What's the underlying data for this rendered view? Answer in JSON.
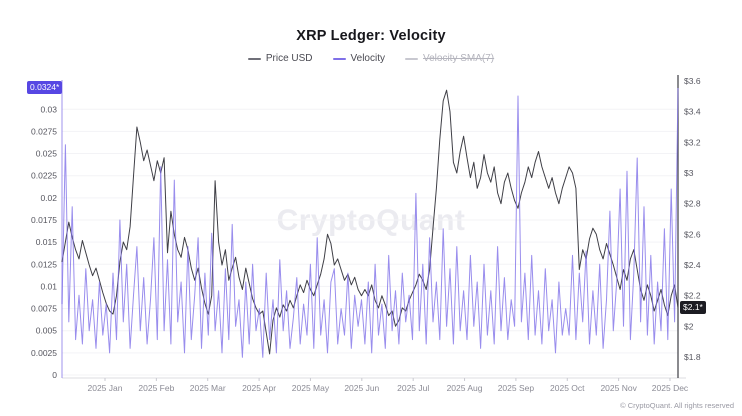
{
  "header": {
    "title": "XRP Ledger: Velocity"
  },
  "legend": {
    "items": [
      {
        "label": "Price USD",
        "color": "#6f6f78",
        "active": true
      },
      {
        "label": "Velocity",
        "color": "#7f70e8",
        "active": true
      },
      {
        "label": "Velocity SMA(7)",
        "color": "#c8c8d0",
        "active": false
      }
    ]
  },
  "watermark": "CryptoQuant",
  "footer": {
    "copyright": "© CryptoQuant. All rights reserved"
  },
  "chart_data": {
    "type": "line",
    "title": "XRP Ledger: Velocity",
    "grid": true,
    "legend_position": "top",
    "x_ticks": [
      "2025 Jan",
      "2025 Feb",
      "2025 Mar",
      "2025 Apr",
      "2025 May",
      "2025 Jun",
      "2025 Jul",
      "2025 Aug",
      "2025 Sep",
      "2025 Oct",
      "2025 Nov",
      "2025 Dec"
    ],
    "left_axis": {
      "label": "Velocity",
      "tick_labels": [
        "0",
        "0.0025",
        "0.005",
        "0.0075",
        "0.01",
        "0.0125",
        "0.015",
        "0.0175",
        "0.02",
        "0.0225",
        "0.025",
        "0.0275",
        "0.03"
      ],
      "range": [
        0,
        0.0324
      ],
      "current_value": 0.0324,
      "current_badge": "0.0324*",
      "badge_color": "#5747e3",
      "axis_color": "#7f70e8"
    },
    "right_axis": {
      "label": "Price USD",
      "tick_labels": [
        "$1.8",
        "$2",
        "$2.2",
        "$2.4",
        "$2.6",
        "$2.8",
        "$3",
        "$3.2",
        "$3.4",
        "$3.6"
      ],
      "range": [
        1.8,
        3.6
      ],
      "current_value": 2.12,
      "current_badge": "$2.1*",
      "badge_color": "#1c1c22",
      "axis_color": "#3d3d44"
    },
    "series": [
      {
        "name": "Price USD",
        "axis": "right",
        "color": "#3f3f46",
        "hidden": false,
        "values": [
          2.42,
          2.55,
          2.68,
          2.58,
          2.5,
          2.44,
          2.56,
          2.48,
          2.4,
          2.33,
          2.38,
          2.3,
          2.22,
          2.15,
          2.1,
          2.08,
          2.2,
          2.42,
          2.55,
          2.5,
          2.65,
          2.98,
          3.3,
          3.2,
          3.08,
          3.15,
          3.05,
          2.95,
          3.08,
          3.0,
          3.1,
          2.48,
          2.75,
          2.6,
          2.5,
          2.45,
          2.58,
          2.5,
          2.38,
          2.3,
          2.38,
          2.25,
          2.15,
          2.08,
          2.2,
          2.95,
          2.55,
          2.4,
          2.5,
          2.3,
          2.38,
          2.45,
          2.32,
          2.24,
          2.38,
          2.28,
          2.18,
          2.12,
          2.08,
          2.1,
          1.96,
          1.82,
          2.04,
          2.12,
          2.06,
          2.14,
          2.1,
          2.17,
          2.12,
          2.2,
          2.27,
          2.22,
          2.3,
          2.24,
          2.2,
          2.27,
          2.34,
          2.44,
          2.6,
          2.54,
          2.4,
          2.44,
          2.37,
          2.3,
          2.34,
          2.27,
          2.32,
          2.24,
          2.2,
          2.24,
          2.2,
          2.27,
          2.17,
          2.12,
          2.2,
          2.14,
          2.07,
          2.1,
          2.0,
          2.04,
          2.12,
          2.1,
          2.17,
          2.22,
          2.27,
          2.34,
          2.3,
          2.24,
          2.37,
          2.64,
          2.9,
          3.22,
          3.47,
          3.54,
          3.4,
          3.07,
          3.0,
          3.14,
          3.24,
          3.1,
          2.97,
          3.07,
          2.9,
          2.97,
          3.12,
          3.0,
          2.94,
          3.04,
          2.87,
          2.8,
          2.94,
          3.0,
          2.9,
          2.82,
          2.77,
          2.87,
          2.94,
          3.04,
          2.97,
          3.07,
          3.14,
          3.04,
          2.97,
          2.9,
          2.97,
          2.87,
          2.8,
          2.9,
          2.97,
          3.04,
          3.0,
          2.9,
          2.37,
          2.5,
          2.44,
          2.57,
          2.64,
          2.6,
          2.5,
          2.44,
          2.54,
          2.47,
          2.4,
          2.32,
          2.24,
          2.37,
          2.3,
          2.44,
          2.5,
          2.37,
          2.24,
          2.17,
          2.27,
          2.2,
          2.1,
          2.17,
          2.24,
          2.14,
          2.07,
          2.2,
          2.27,
          2.12
        ]
      },
      {
        "name": "Velocity",
        "axis": "left",
        "color": "#7f70e8",
        "hidden": false,
        "values": [
          0.008,
          0.026,
          0.006,
          0.019,
          0.004,
          0.009,
          0.0035,
          0.012,
          0.005,
          0.0085,
          0.003,
          0.0105,
          0.0045,
          0.008,
          0.0025,
          0.0115,
          0.004,
          0.0175,
          0.006,
          0.0125,
          0.003,
          0.009,
          0.0145,
          0.005,
          0.011,
          0.0035,
          0.0085,
          0.0155,
          0.004,
          0.0235,
          0.005,
          0.013,
          0.0035,
          0.022,
          0.006,
          0.0105,
          0.0025,
          0.0145,
          0.004,
          0.009,
          0.0155,
          0.003,
          0.0115,
          0.0045,
          0.016,
          0.005,
          0.0095,
          0.0025,
          0.012,
          0.004,
          0.017,
          0.0055,
          0.0085,
          0.002,
          0.0105,
          0.0035,
          0.0125,
          0.005,
          0.0075,
          0.002,
          0.0115,
          0.004,
          0.0085,
          0.0025,
          0.013,
          0.005,
          0.0095,
          0.003,
          0.0065,
          0.011,
          0.0035,
          0.008,
          0.0045,
          0.0125,
          0.003,
          0.0155,
          0.0045,
          0.0085,
          0.0025,
          0.0105,
          0.012,
          0.0035,
          0.0075,
          0.0045,
          0.0115,
          0.003,
          0.009,
          0.0055,
          0.0085,
          0.0035,
          0.0105,
          0.0025,
          0.0125,
          0.0045,
          0.008,
          0.003,
          0.0135,
          0.005,
          0.0095,
          0.0035,
          0.0115,
          0.006,
          0.009,
          0.004,
          0.0205,
          0.005,
          0.0125,
          0.0035,
          0.0155,
          0.006,
          0.0105,
          0.004,
          0.0165,
          0.0055,
          0.012,
          0.0035,
          0.0145,
          0.005,
          0.0095,
          0.004,
          0.0135,
          0.0055,
          0.0105,
          0.003,
          0.0125,
          0.0045,
          0.0095,
          0.0035,
          0.0145,
          0.005,
          0.011,
          0.004,
          0.0085,
          0.0055,
          0.0315,
          0.006,
          0.0115,
          0.004,
          0.0135,
          0.0045,
          0.0095,
          0.0035,
          0.012,
          0.005,
          0.0085,
          0.0025,
          0.0105,
          0.0045,
          0.0075,
          0.0045,
          0.0135,
          0.004,
          0.0115,
          0.006,
          0.014,
          0.0035,
          0.0095,
          0.0045,
          0.0125,
          0.003,
          0.0085,
          0.0185,
          0.005,
          0.0105,
          0.021,
          0.0055,
          0.023,
          0.004,
          0.0115,
          0.0245,
          0.006,
          0.019,
          0.0045,
          0.0135,
          0.0035,
          0.0105,
          0.005,
          0.0165,
          0.004,
          0.021,
          0.006,
          0.0324
        ]
      },
      {
        "name": "Velocity SMA(7)",
        "axis": "left",
        "color": "#c8c8d0",
        "hidden": true,
        "values": []
      }
    ]
  }
}
